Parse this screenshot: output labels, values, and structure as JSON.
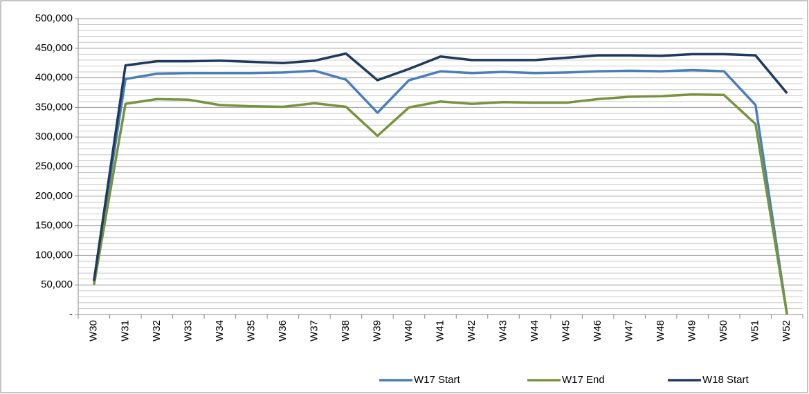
{
  "chart_data": {
    "type": "line",
    "categories": [
      "W30",
      "W31",
      "W32",
      "W33",
      "W34",
      "W35",
      "W36",
      "W37",
      "W38",
      "W39",
      "W40",
      "W41",
      "W42",
      "W43",
      "W44",
      "W45",
      "W46",
      "W47",
      "W48",
      "W49",
      "W50",
      "W51",
      "W52"
    ],
    "series": [
      {
        "name": "W17 Start",
        "color": "#4a7ebb",
        "values": [
          55000,
          398000,
          407000,
          408000,
          408000,
          408000,
          409000,
          412000,
          397000,
          341000,
          396000,
          411000,
          408000,
          410000,
          408000,
          409000,
          411000,
          412000,
          411000,
          413000,
          411000,
          354000,
          0
        ]
      },
      {
        "name": "W17 End",
        "color": "#77933c",
        "values": [
          50000,
          356000,
          364000,
          363000,
          354000,
          352000,
          351000,
          357000,
          351000,
          302000,
          350000,
          360000,
          356000,
          359000,
          358000,
          358000,
          364000,
          368000,
          369000,
          372000,
          371000,
          322000,
          0
        ]
      },
      {
        "name": "W18 Start",
        "color": "#1f3a5f",
        "values": [
          57000,
          421000,
          428000,
          428000,
          429000,
          427000,
          425000,
          429000,
          441000,
          396000,
          415000,
          436000,
          430000,
          430000,
          430000,
          434000,
          438000,
          438000,
          437000,
          440000,
          440000,
          438000,
          374000
        ]
      }
    ],
    "ylim": [
      0,
      500000
    ],
    "yticks": [
      {
        "value": 0,
        "label": "-"
      },
      {
        "value": 50000,
        "label": "50,000"
      },
      {
        "value": 100000,
        "label": "100,000"
      },
      {
        "value": 150000,
        "label": "150,000"
      },
      {
        "value": 200000,
        "label": "200,000"
      },
      {
        "value": 250000,
        "label": "250,000"
      },
      {
        "value": 300000,
        "label": "300,000"
      },
      {
        "value": 350000,
        "label": "350,000"
      },
      {
        "value": 400000,
        "label": "400,000"
      },
      {
        "value": 450000,
        "label": "450,000"
      },
      {
        "value": 500000,
        "label": "500,000"
      }
    ],
    "minor_yticks": [
      10000,
      20000,
      30000,
      40000,
      60000,
      70000,
      80000,
      90000,
      110000,
      120000,
      130000,
      140000,
      160000,
      170000,
      180000,
      190000,
      210000,
      220000,
      230000,
      240000,
      260000,
      270000,
      280000,
      290000,
      310000,
      320000,
      330000,
      340000,
      360000,
      370000,
      380000,
      390000,
      410000,
      420000,
      430000,
      440000,
      460000,
      470000,
      480000,
      490000
    ],
    "grid": true,
    "legend": "bottom"
  }
}
